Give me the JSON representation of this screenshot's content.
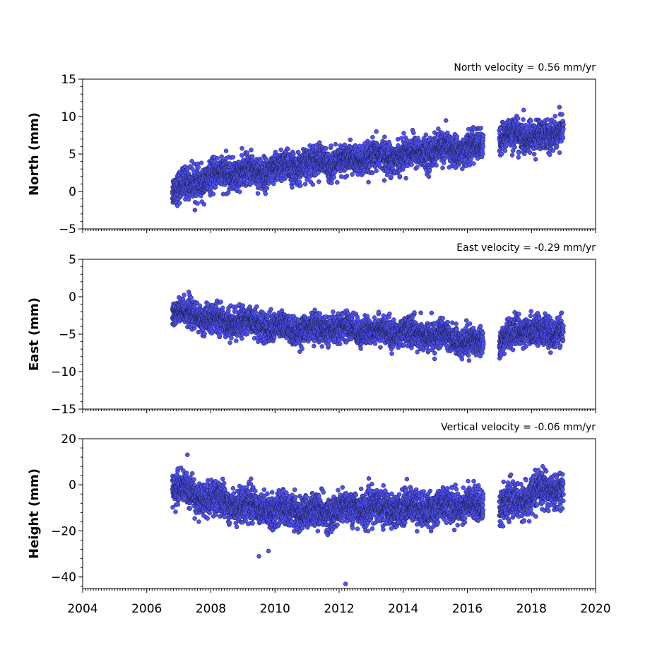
{
  "colors": {
    "marker": "#4f52f5",
    "marker_edge": "#1a1a40",
    "axis": "#000000"
  },
  "chart_data": [
    {
      "type": "scatter",
      "title": "North velocity = 0.56 mm/yr",
      "ylabel": "North (mm)",
      "xlim": [
        2004,
        2020
      ],
      "ylim": [
        -5,
        15
      ],
      "yticks": [
        "−5",
        "0",
        "5",
        "10",
        "15"
      ],
      "series": [
        {
          "segments": [
            {
              "x": [
                2006.8,
                2007.5,
                2008.0,
                2008.5,
                2009.0,
                2009.5,
                2010.0,
                2010.5,
                2011.0,
                2011.5,
                2012.0,
                2012.5,
                2013.0,
                2013.5,
                2014.0,
                2014.5,
                2015.0,
                2015.5,
                2016.0,
                2016.5
              ],
              "y": [
                0.5,
                1.0,
                2.0,
                2.3,
                2.7,
                2.5,
                3.0,
                3.2,
                3.8,
                4.0,
                3.8,
                4.2,
                4.5,
                4.6,
                4.9,
                5.2,
                5.5,
                5.6,
                5.7,
                6.0
              ]
            },
            {
              "x": [
                2017.0,
                2017.5,
                2018.0,
                2018.5,
                2019.0
              ],
              "y": [
                6.5,
                8.0,
                7.0,
                7.5,
                8.5
              ]
            }
          ]
        }
      ],
      "spread": 1.0
    },
    {
      "type": "scatter",
      "title": "East velocity = -0.29 mm/yr",
      "ylabel": "East (mm)",
      "xlim": [
        2004,
        2020
      ],
      "ylim": [
        -15,
        5
      ],
      "yticks": [
        "−15",
        "−10",
        "−5",
        "0",
        "5"
      ],
      "series": [
        {
          "segments": [
            {
              "x": [
                2006.8,
                2007.5,
                2008.0,
                2008.5,
                2009.0,
                2009.5,
                2010.0,
                2010.5,
                2011.0,
                2011.5,
                2012.0,
                2012.5,
                2013.0,
                2013.5,
                2014.0,
                2014.5,
                2015.0,
                2015.5,
                2016.0,
                2016.5
              ],
              "y": [
                -2.0,
                -2.5,
                -3.0,
                -3.5,
                -3.2,
                -3.8,
                -4.0,
                -4.5,
                -4.2,
                -4.5,
                -4.0,
                -4.5,
                -4.5,
                -4.8,
                -4.8,
                -5.0,
                -5.2,
                -5.5,
                -6.0,
                -6.0
              ]
            },
            {
              "x": [
                2017.0,
                2017.5,
                2018.0,
                2018.5,
                2019.0
              ],
              "y": [
                -6.5,
                -4.5,
                -4.5,
                -4.8,
                -4.5
              ]
            }
          ]
        }
      ],
      "spread": 0.9
    },
    {
      "type": "scatter",
      "title": "Vertical velocity = -0.06 mm/yr",
      "ylabel": "Height (mm)",
      "xlim": [
        2004,
        2020
      ],
      "ylim": [
        -45,
        20
      ],
      "yticks": [
        "−40",
        "−20",
        "0",
        "20"
      ],
      "xticks": [
        "2004",
        "2006",
        "2008",
        "2010",
        "2012",
        "2014",
        "2016",
        "2018",
        "2020"
      ],
      "series": [
        {
          "segments": [
            {
              "x": [
                2006.8,
                2007.5,
                2008.0,
                2008.5,
                2009.0,
                2009.5,
                2010.0,
                2010.5,
                2011.0,
                2011.5,
                2012.0,
                2012.5,
                2013.0,
                2013.5,
                2014.0,
                2014.5,
                2015.0,
                2015.5,
                2016.0,
                2016.5
              ],
              "y": [
                0,
                -5,
                -6,
                -8,
                -8,
                -10,
                -11,
                -11,
                -12,
                -12,
                -11,
                -10,
                -10,
                -10,
                -10,
                -10,
                -10,
                -9,
                -8,
                -10
              ]
            },
            {
              "x": [
                2017.0,
                2017.5,
                2018.0,
                2018.5,
                2019.0
              ],
              "y": [
                -10,
                -7,
                -5,
                -2,
                -2
              ]
            }
          ]
        }
      ],
      "spread": 3.5,
      "outliers": [
        {
          "x": 2012.2,
          "y": -43
        },
        {
          "x": 2009.5,
          "y": -31
        }
      ]
    }
  ]
}
